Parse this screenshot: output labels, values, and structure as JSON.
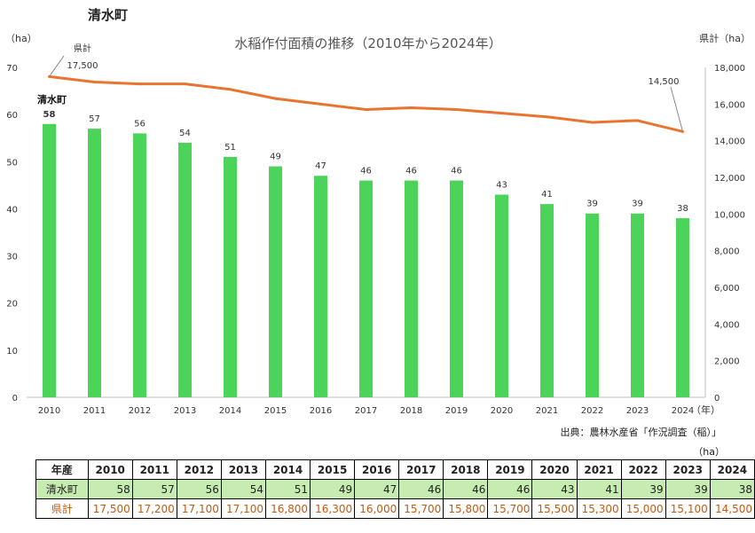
{
  "page_title": "清水町",
  "source_note": "出典：農林水産省「作況調査（稲）」",
  "table": {
    "unit": "（ha）",
    "header_label": "年産",
    "years": [
      "2010",
      "2011",
      "2012",
      "2013",
      "2014",
      "2015",
      "2016",
      "2017",
      "2018",
      "2019",
      "2020",
      "2021",
      "2022",
      "2023",
      "2024"
    ],
    "rows": [
      {
        "label": "清水町",
        "values": [
          "58",
          "57",
          "56",
          "54",
          "51",
          "49",
          "47",
          "46",
          "46",
          "46",
          "43",
          "41",
          "39",
          "39",
          "38"
        ]
      },
      {
        "label": "県計",
        "values": [
          "17,500",
          "17,200",
          "17,100",
          "17,100",
          "16,800",
          "16,300",
          "16,000",
          "15,700",
          "15,800",
          "15,700",
          "15,500",
          "15,300",
          "15,000",
          "15,100",
          "14,500"
        ]
      }
    ]
  },
  "chart_data": {
    "type": "bar",
    "title": "水稲作付面積の推移（2010年から2024年）",
    "categories": [
      "2010",
      "2011",
      "2012",
      "2013",
      "2014",
      "2015",
      "2016",
      "2017",
      "2018",
      "2019",
      "2020",
      "2021",
      "2022",
      "2023",
      "2024"
    ],
    "x_unit": "（年）",
    "y_left": {
      "unit": "（ha）",
      "min": 0,
      "max": 70,
      "ticks": [
        "0",
        "10",
        "20",
        "30",
        "40",
        "50",
        "60",
        "70"
      ]
    },
    "y_right": {
      "unit": "県計（ha）",
      "min": 0,
      "max": 18000,
      "ticks": [
        "0",
        "2,000",
        "4,000",
        "6,000",
        "8,000",
        "10,000",
        "12,000",
        "14,000",
        "16,000",
        "18,000"
      ]
    },
    "series": [
      {
        "name": "清水町",
        "type": "bar",
        "axis": "left",
        "color": "#4cd45a",
        "values": [
          58,
          57,
          56,
          54,
          51,
          49,
          47,
          46,
          46,
          46,
          43,
          41,
          39,
          39,
          38
        ],
        "labels": [
          "58",
          "57",
          "56",
          "54",
          "51",
          "49",
          "47",
          "46",
          "46",
          "46",
          "43",
          "41",
          "39",
          "39",
          "38"
        ]
      },
      {
        "name": "県計",
        "type": "line",
        "axis": "right",
        "color": "#e8742f",
        "values": [
          17500,
          17200,
          17100,
          17100,
          16800,
          16300,
          16000,
          15700,
          15800,
          15700,
          15500,
          15300,
          15000,
          15100,
          14500
        ]
      }
    ],
    "annotations": [
      {
        "text": "17,500",
        "series": "県計",
        "index": 0
      },
      {
        "text": "14,500",
        "series": "県計",
        "index": 14
      }
    ],
    "grid": false
  }
}
